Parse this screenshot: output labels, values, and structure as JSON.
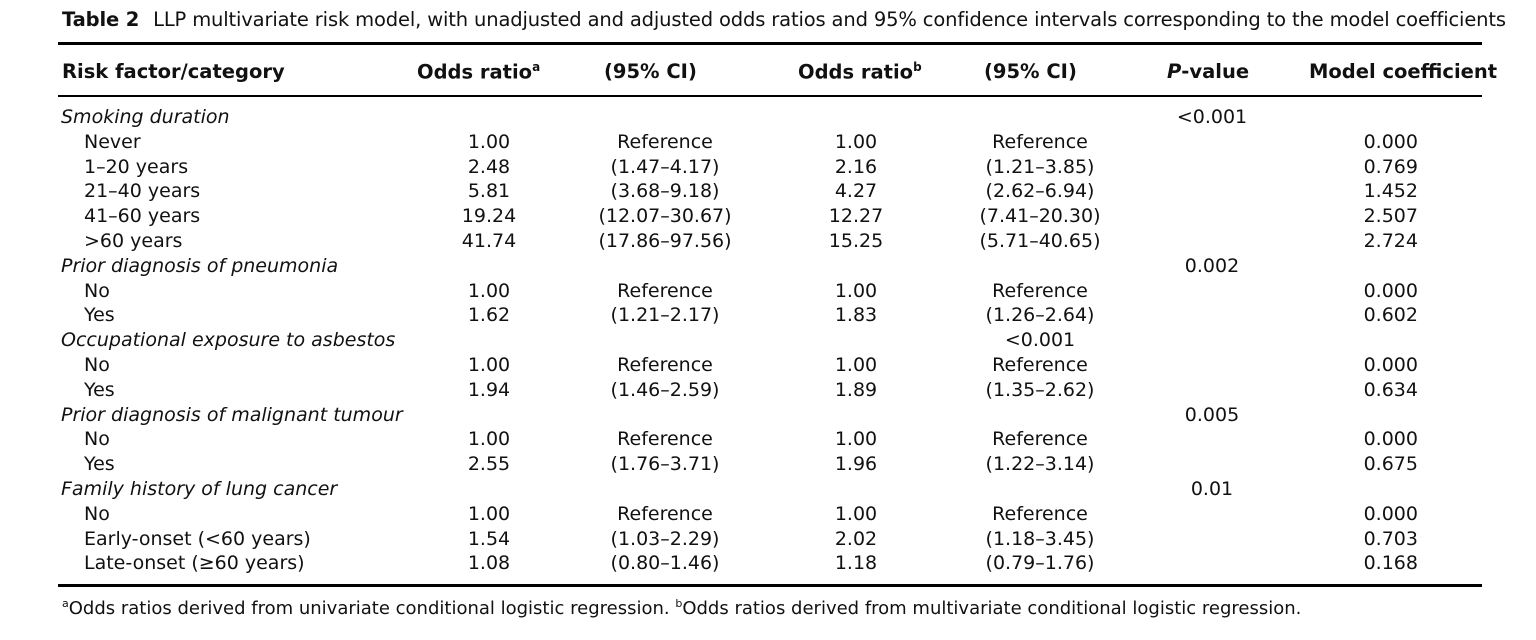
{
  "caption": {
    "label": "Table 2",
    "text": "LLP multivariate risk model, with unadjusted and adjusted odds ratios and 95% confidence intervals corresponding to the model coefficients"
  },
  "headers": {
    "risk_factor": "Risk factor/category",
    "or_unadj": "Odds ratio",
    "or_unadj_sup": "a",
    "ci_unadj": "(95% CI)",
    "or_adj": "Odds ratio",
    "or_adj_sup": "b",
    "ci_adj": "(95% CI)",
    "p_italic": "P",
    "p_rest": "-value",
    "coef": "Model coefficient"
  },
  "rows": [
    {
      "label": "Smoking duration",
      "group": true,
      "p": "<0.001"
    },
    {
      "label": "Never",
      "or1": "1.00",
      "ci1": "Reference",
      "or2": "1.00",
      "ci2": "Reference",
      "coef": "0.000"
    },
    {
      "label": "1–20 years",
      "or1": "2.48",
      "ci1": "(1.47–4.17)",
      "or2": "2.16",
      "ci2": "(1.21–3.85)",
      "coef": "0.769"
    },
    {
      "label": "21–40 years",
      "or1": "5.81",
      "ci1": "(3.68–9.18)",
      "or2": "4.27",
      "ci2": "(2.62–6.94)",
      "coef": "1.452"
    },
    {
      "label": "41–60 years",
      "or1": "19.24",
      "ci1": "(12.07–30.67)",
      "or2": "12.27",
      "ci2": "(7.41–20.30)",
      "coef": "2.507"
    },
    {
      "label": ">60 years",
      "or1": "41.74",
      "ci1": "(17.86–97.56)",
      "or2": "15.25",
      "ci2": "(5.71–40.65)",
      "coef": "2.724"
    },
    {
      "label": "Prior diagnosis of pneumonia",
      "group": true,
      "p": "0.002"
    },
    {
      "label": "No",
      "or1": "1.00",
      "ci1": "Reference",
      "or2": "1.00",
      "ci2": "Reference",
      "coef": "0.000"
    },
    {
      "label": "Yes",
      "or1": "1.62",
      "ci1": "(1.21–2.17)",
      "or2": "1.83",
      "ci2": "(1.26–2.64)",
      "coef": "0.602"
    },
    {
      "label": "Occupational exposure to asbestos",
      "group": true,
      "p_shifted": "<0.001"
    },
    {
      "label": "No",
      "or1": "1.00",
      "ci1": "Reference",
      "or2": "1.00",
      "ci2": "Reference",
      "coef": "0.000"
    },
    {
      "label": "Yes",
      "or1": "1.94",
      "ci1": "(1.46–2.59)",
      "or2": "1.89",
      "ci2": "(1.35–2.62)",
      "coef": "0.634"
    },
    {
      "label": "Prior diagnosis of malignant tumour",
      "group": true,
      "p": "0.005"
    },
    {
      "label": "No",
      "or1": "1.00",
      "ci1": "Reference",
      "or2": "1.00",
      "ci2": "Reference",
      "coef": "0.000"
    },
    {
      "label": "Yes",
      "or1": "2.55",
      "ci1": "(1.76–3.71)",
      "or2": "1.96",
      "ci2": "(1.22–3.14)",
      "coef": "0.675"
    },
    {
      "label": "Family history of lung cancer",
      "group": true,
      "p": "0.01"
    },
    {
      "label": "No",
      "or1": "1.00",
      "ci1": "Reference",
      "or2": "1.00",
      "ci2": "Reference",
      "coef": "0.000"
    },
    {
      "label": "Early-onset (<60 years)",
      "or1": "1.54",
      "ci1": "(1.03–2.29)",
      "or2": "2.02",
      "ci2": "(1.18–3.45)",
      "coef": "0.703"
    },
    {
      "label": "Late-onset (≥60 years)",
      "or1": "1.08",
      "ci1": "(0.80–1.46)",
      "or2": "1.18",
      "ci2": "(0.79–1.76)",
      "coef": "0.168"
    }
  ],
  "footnotes": {
    "a_mark": "a",
    "a_text": "Odds ratios derived from univariate conditional logistic regression.",
    "b_mark": "b",
    "b_text": "Odds ratios derived from multivariate conditional logistic regression."
  }
}
